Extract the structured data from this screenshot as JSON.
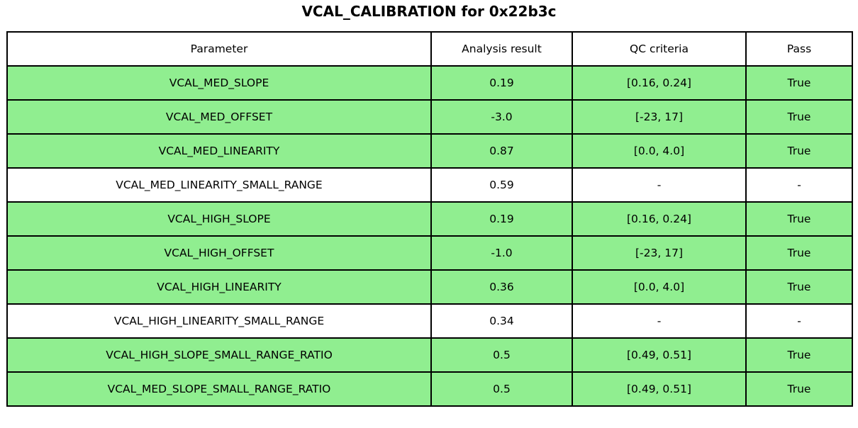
{
  "title": "VCAL_CALIBRATION for 0x22b3c",
  "colors": {
    "pass_row_bg": "#90ee90",
    "neutral_row_bg": "#ffffff",
    "border": "#000000",
    "text": "#000000"
  },
  "chart_data": {
    "type": "table",
    "title": "VCAL_CALIBRATION for 0x22b3c",
    "columns": [
      "Parameter",
      "Analysis result",
      "QC criteria",
      "Pass"
    ],
    "rows": [
      {
        "cells": [
          "VCAL_MED_SLOPE",
          "0.19",
          "[0.16, 0.24]",
          "True"
        ],
        "passed": true
      },
      {
        "cells": [
          "VCAL_MED_OFFSET",
          "-3.0",
          "[-23, 17]",
          "True"
        ],
        "passed": true
      },
      {
        "cells": [
          "VCAL_MED_LINEARITY",
          "0.87",
          "[0.0, 4.0]",
          "True"
        ],
        "passed": true
      },
      {
        "cells": [
          "VCAL_MED_LINEARITY_SMALL_RANGE",
          "0.59",
          "-",
          "-"
        ],
        "passed": false
      },
      {
        "cells": [
          "VCAL_HIGH_SLOPE",
          "0.19",
          "[0.16, 0.24]",
          "True"
        ],
        "passed": true
      },
      {
        "cells": [
          "VCAL_HIGH_OFFSET",
          "-1.0",
          "[-23, 17]",
          "True"
        ],
        "passed": true
      },
      {
        "cells": [
          "VCAL_HIGH_LINEARITY",
          "0.36",
          "[0.0, 4.0]",
          "True"
        ],
        "passed": true
      },
      {
        "cells": [
          "VCAL_HIGH_LINEARITY_SMALL_RANGE",
          "0.34",
          "-",
          "-"
        ],
        "passed": false
      },
      {
        "cells": [
          "VCAL_HIGH_SLOPE_SMALL_RANGE_RATIO",
          "0.5",
          "[0.49, 0.51]",
          "True"
        ],
        "passed": true
      },
      {
        "cells": [
          "VCAL_MED_SLOPE_SMALL_RANGE_RATIO",
          "0.5",
          "[0.49, 0.51]",
          "True"
        ],
        "passed": true
      }
    ]
  }
}
